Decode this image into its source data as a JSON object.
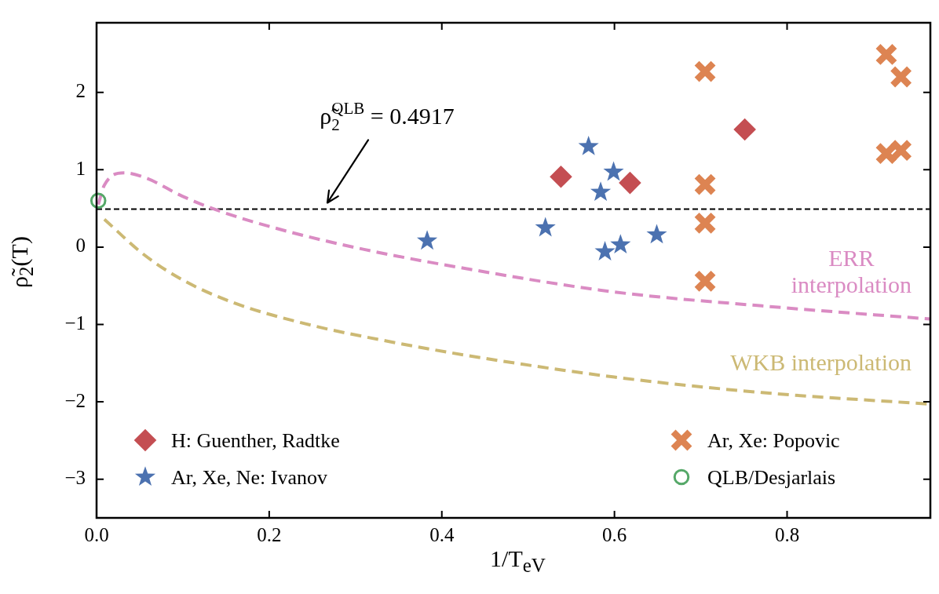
{
  "chart_data": {
    "type": "scatter",
    "xlabel": "1/T$_{eV}$",
    "ylabel": "ρ̃$_{2}$(T)",
    "xlim": [
      0,
      0.966
    ],
    "ylim": [
      -3.5,
      2.9
    ],
    "xticks": [
      {
        "value": 0,
        "label": "0.0"
      },
      0.2,
      0.4,
      0.6,
      0.8
    ],
    "yticks": [
      -3,
      -2,
      -1,
      0,
      1,
      2
    ],
    "grid": false,
    "legend": "bottom left",
    "ref_lines": [
      {
        "axis": "y",
        "value": 0.4917,
        "label": null,
        "color": "#000000",
        "line_style": "dashed"
      }
    ],
    "annotations": [
      "ρ̃$_{2}$$^{QLB}$ = 0.4917"
    ],
    "series": [
      {
        "name": "H: Guenther, Radtke",
        "color": "#c44e52",
        "marker": "diamond",
        "x": [
          0.538,
          0.618,
          0.751
        ],
        "values": [
          0.91,
          0.83,
          1.52
        ]
      },
      {
        "name": "Ar, Xe, Ne: Ivanov",
        "color": "#4c72b0",
        "marker": "star",
        "x": [
          0.383,
          0.52,
          0.57,
          0.584,
          0.599,
          0.589,
          0.607,
          0.649
        ],
        "values": [
          0.08,
          0.25,
          1.3,
          0.71,
          0.97,
          -0.06,
          0.03,
          0.16
        ]
      },
      {
        "name": "Ar, Xe: Popovic",
        "color": "#dd8452",
        "marker": "cross",
        "x": [
          0.705,
          0.705,
          0.705,
          0.705,
          0.915,
          0.932,
          0.915,
          0.932
        ],
        "values": [
          2.27,
          0.81,
          0.31,
          -0.44,
          2.49,
          2.2,
          1.21,
          1.25
        ]
      },
      {
        "name": "QLB/Desjarlais",
        "color": "#55a868",
        "marker": "circle",
        "x": [
          0.002
        ],
        "values": [
          0.6
        ]
      },
      {
        "name": "ERR interpolation",
        "type": "line",
        "color": "#da8bc3",
        "line_style": "dashed",
        "marker": "none",
        "x": [
          0.002,
          0.009,
          0.032,
          0.058,
          0.099,
          0.144,
          0.219,
          0.31,
          0.429,
          0.6,
          0.771,
          0.966
        ],
        "values": [
          0.55,
          0.8,
          0.96,
          0.89,
          0.66,
          0.46,
          0.21,
          -0.03,
          -0.28,
          -0.58,
          -0.76,
          -0.93
        ]
      },
      {
        "name": "WKB interpolation",
        "type": "line",
        "color": "#ccb974",
        "line_style": "dashed",
        "marker": "none",
        "x": [
          0.009,
          0.054,
          0.099,
          0.159,
          0.249,
          0.339,
          0.429,
          0.6,
          0.771,
          0.966
        ],
        "values": [
          0.36,
          -0.09,
          -0.42,
          -0.72,
          -1.01,
          -1.22,
          -1.4,
          -1.68,
          -1.88,
          -2.03
        ]
      }
    ]
  }
}
